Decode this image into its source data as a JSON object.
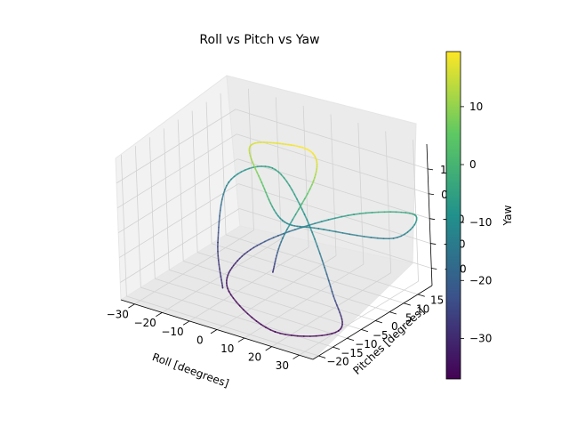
{
  "chart_data": {
    "type": "line3d",
    "title": "Roll vs Pitch vs Yaw",
    "xlabel": "Roll [deegrees]",
    "ylabel": "Pitches [degrees]",
    "zlabel": "",
    "colorbar_label": "Yaw",
    "colormap": "viridis",
    "xlim": [
      -35,
      35
    ],
    "ylim": [
      -22,
      20
    ],
    "zlim": [
      -37,
      20
    ],
    "x_ticks": [
      -30,
      -20,
      -10,
      0,
      10,
      20,
      30
    ],
    "y_ticks": [
      -20,
      -15,
      -10,
      -5,
      0,
      5,
      10,
      15
    ],
    "z_ticks": [
      -30,
      -20,
      -10,
      0,
      10
    ],
    "colorbar_ticks": [
      -30,
      -20,
      -10,
      0,
      10
    ],
    "colorbar_range": [
      -37,
      19.5
    ],
    "grid": true,
    "series": [
      {
        "points": [
          {
            "x": -8,
            "y": -12,
            "z": -30
          },
          {
            "x": -22,
            "y": 0,
            "z": -25
          },
          {
            "x": -30,
            "y": 12,
            "z": -12
          },
          {
            "x": -18,
            "y": 16,
            "z": -5
          },
          {
            "x": 5,
            "y": 5,
            "z": -8
          },
          {
            "x": 28,
            "y": -8,
            "z": -22
          },
          {
            "x": 32,
            "y": -10,
            "z": -35
          },
          {
            "x": 15,
            "y": -16,
            "z": -37
          },
          {
            "x": -10,
            "y": -8,
            "z": -35
          },
          {
            "x": -15,
            "y": 0,
            "z": -30
          },
          {
            "x": -5,
            "y": 5,
            "z": -20
          },
          {
            "x": 20,
            "y": 8,
            "z": -5
          },
          {
            "x": 35,
            "y": 15,
            "z": -5
          },
          {
            "x": 30,
            "y": 12,
            "z": -14
          },
          {
            "x": 10,
            "y": 5,
            "z": -12
          },
          {
            "x": 0,
            "y": 2,
            "z": -10
          },
          {
            "x": -5,
            "y": 0,
            "z": 5
          },
          {
            "x": -12,
            "y": 3,
            "z": 15
          },
          {
            "x": -2,
            "y": 5,
            "z": 18
          },
          {
            "x": 10,
            "y": 4,
            "z": 19
          },
          {
            "x": 12,
            "y": 2,
            "z": 10
          },
          {
            "x": 2,
            "y": 0,
            "z": -15
          },
          {
            "x": 0,
            "y": -2,
            "z": -28
          }
        ]
      }
    ]
  }
}
